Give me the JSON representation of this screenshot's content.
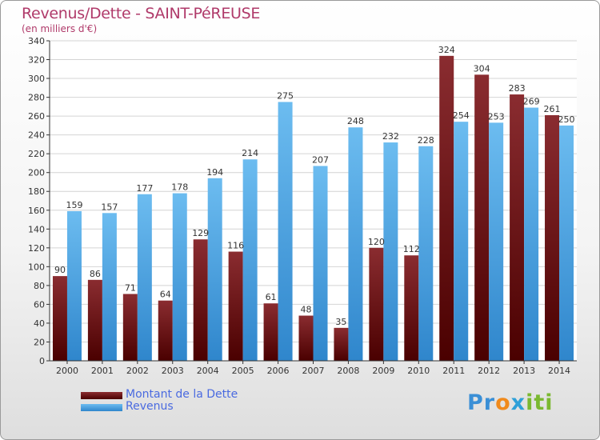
{
  "header": {
    "title": "Revenus/Dette - SAINT-PéREUSE",
    "subtitle": "(en milliers d'€)"
  },
  "legend": {
    "debt_label": "Montant de la Dette",
    "revenue_label": "Revenus"
  },
  "logo": {
    "text": "Proxiti"
  },
  "colors": {
    "debt": "#6a1418",
    "revenue": "#4aa6e6",
    "title": "#b03a6a",
    "legend_text": "#4a6ae0"
  },
  "chart_data": {
    "type": "bar",
    "categories": [
      "2000",
      "2001",
      "2002",
      "2003",
      "2004",
      "2005",
      "2006",
      "2007",
      "2008",
      "2009",
      "2010",
      "2011",
      "2012",
      "2013",
      "2014"
    ],
    "series": [
      {
        "name": "Montant de la Dette",
        "values": [
          90,
          86,
          71,
          64,
          129,
          116,
          61,
          48,
          35,
          120,
          112,
          324,
          304,
          283,
          261
        ]
      },
      {
        "name": "Revenus",
        "values": [
          159,
          157,
          177,
          178,
          194,
          214,
          275,
          207,
          248,
          232,
          228,
          254,
          253,
          269,
          250
        ]
      }
    ],
    "title": "Revenus/Dette - SAINT-PéREUSE",
    "subtitle": "(en milliers d'€)",
    "xlabel": "",
    "ylabel": "",
    "ylim": [
      0,
      340
    ],
    "yticks": [
      0,
      20,
      40,
      60,
      80,
      100,
      120,
      140,
      160,
      180,
      200,
      220,
      240,
      260,
      280,
      300,
      320,
      340
    ],
    "grid": true,
    "legend_position": "bottom-left"
  }
}
